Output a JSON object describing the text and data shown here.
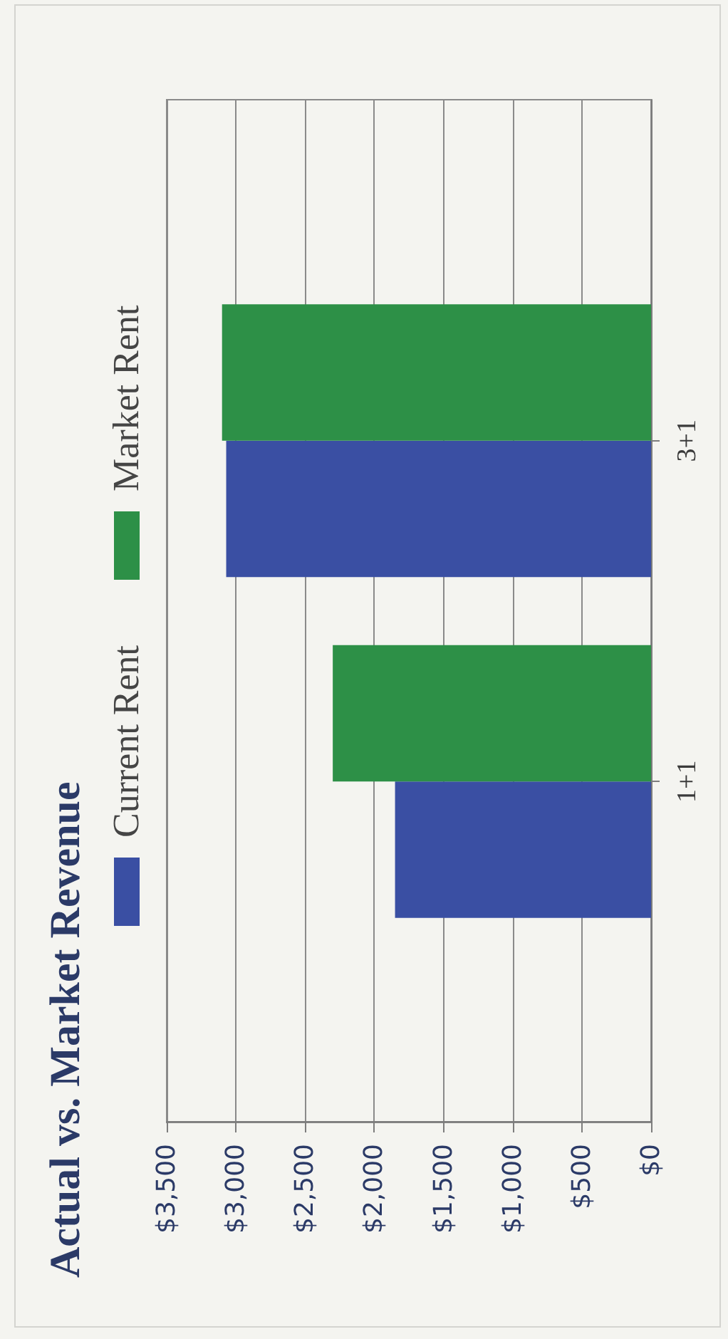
{
  "chart_data": {
    "type": "bar",
    "orientation": "horizontal",
    "title": "Actual vs. Market Revenue",
    "categories": [
      "3+1",
      "1+1"
    ],
    "series": [
      {
        "name": "Current Rent",
        "color": "#3a4fa3",
        "values": [
          3070,
          1850
        ]
      },
      {
        "name": "Market Rent",
        "color": "#2d9047",
        "values": [
          3100,
          2300
        ]
      }
    ],
    "xlim": [
      3500,
      0
    ],
    "xticks": [
      {
        "value": 3500,
        "label": "$3,500"
      },
      {
        "value": 3000,
        "label": "$3,000"
      },
      {
        "value": 2500,
        "label": "$2,500"
      },
      {
        "value": 2000,
        "label": "$2,000"
      },
      {
        "value": 1500,
        "label": "$1,500"
      },
      {
        "value": 1000,
        "label": "$1,000"
      },
      {
        "value": 500,
        "label": "$500"
      },
      {
        "value": 0,
        "label": "$0"
      }
    ],
    "grid": "x",
    "legend": "top"
  }
}
